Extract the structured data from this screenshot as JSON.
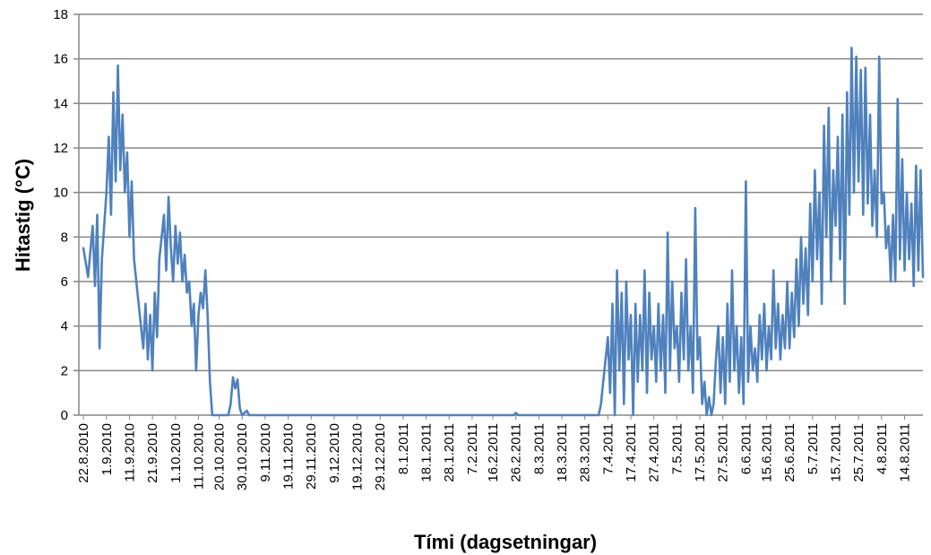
{
  "chart_data": {
    "type": "line",
    "title": "",
    "xlabel": "Tími (dagsetningar)",
    "ylabel": "Hitastig (°C)",
    "ylim": [
      0,
      18
    ],
    "yticks": [
      "0",
      "2",
      "4",
      "6",
      "8",
      "10",
      "12",
      "14",
      "16",
      "18"
    ],
    "grid": true,
    "legend": "none",
    "x_tick_labels": [
      "22.8.2010",
      "1.9.2010",
      "11.9.2010",
      "21.9.2010",
      "1.10.2010",
      "11.10.2010",
      "20.10.2010",
      "30.10.2010",
      "9.11.2010",
      "19.11.2010",
      "29.11.2010",
      "9.12.2010",
      "19.12.2010",
      "29.12.2010",
      "8.1.2011",
      "18.1.2011",
      "28.1.2011",
      "7.2.2011",
      "16.2.2011",
      "26.2.2011",
      "8.3.2011",
      "18.3.2011",
      "28.3.2011",
      "7.4.2011",
      "17.4.2011",
      "27.4.2011",
      "7.5.2011",
      "17.5.2011",
      "27.5.2011",
      "6.6.2011",
      "15.6.2011",
      "25.6.2011",
      "5.7.2011",
      "15.7.2011",
      "25.7.2011",
      "4.8.2011",
      "14.8.2011"
    ],
    "series": [
      {
        "color": "#4f81bd",
        "points": [
          [
            "22.8.2010",
            7.5
          ],
          [
            "24.8.2010",
            6.2
          ],
          [
            "26.8.2010",
            8.5
          ],
          [
            "27.8.2010",
            5.8
          ],
          [
            "28.8.2010",
            9.0
          ],
          [
            "29.8.2010",
            3.0
          ],
          [
            "30.8.2010",
            7.0
          ],
          [
            "1.9.2010",
            10.0
          ],
          [
            "2.9.2010",
            12.5
          ],
          [
            "3.9.2010",
            9.0
          ],
          [
            "4.9.2010",
            14.5
          ],
          [
            "5.9.2010",
            10.5
          ],
          [
            "6.9.2010",
            15.7
          ],
          [
            "7.9.2010",
            11.0
          ],
          [
            "8.9.2010",
            13.5
          ],
          [
            "9.9.2010",
            10.0
          ],
          [
            "10.9.2010",
            11.8
          ],
          [
            "11.9.2010",
            8.0
          ],
          [
            "12.9.2010",
            10.5
          ],
          [
            "13.9.2010",
            7.0
          ],
          [
            "15.9.2010",
            5.0
          ],
          [
            "17.9.2010",
            3.0
          ],
          [
            "18.9.2010",
            5.0
          ],
          [
            "19.9.2010",
            2.5
          ],
          [
            "20.9.2010",
            4.5
          ],
          [
            "21.9.2010",
            2.0
          ],
          [
            "22.9.2010",
            5.5
          ],
          [
            "23.9.2010",
            3.5
          ],
          [
            "24.9.2010",
            7.0
          ],
          [
            "26.9.2010",
            9.0
          ],
          [
            "27.9.2010",
            6.5
          ],
          [
            "28.9.2010",
            9.8
          ],
          [
            "29.9.2010",
            7.5
          ],
          [
            "30.9.2010",
            6.0
          ],
          [
            "1.10.2010",
            8.5
          ],
          [
            "2.10.2010",
            6.8
          ],
          [
            "3.10.2010",
            8.2
          ],
          [
            "4.10.2010",
            6.0
          ],
          [
            "5.10.2010",
            7.2
          ],
          [
            "6.10.2010",
            5.5
          ],
          [
            "7.10.2010",
            6.0
          ],
          [
            "8.10.2010",
            4.0
          ],
          [
            "9.10.2010",
            5.0
          ],
          [
            "10.10.2010",
            2.0
          ],
          [
            "11.10.2010",
            4.5
          ],
          [
            "12.10.2010",
            5.5
          ],
          [
            "13.10.2010",
            4.8
          ],
          [
            "14.10.2010",
            6.5
          ],
          [
            "15.10.2010",
            4.5
          ],
          [
            "16.10.2010",
            1.5
          ],
          [
            "17.10.2010",
            0.0
          ],
          [
            "24.10.2010",
            0.0
          ],
          [
            "25.10.2010",
            0.5
          ],
          [
            "26.10.2010",
            1.7
          ],
          [
            "27.10.2010",
            1.2
          ],
          [
            "28.10.2010",
            1.6
          ],
          [
            "29.10.2010",
            0.3
          ],
          [
            "30.10.2010",
            0.0
          ],
          [
            "1.11.2010",
            0.2
          ],
          [
            "2.11.2010",
            0.0
          ],
          [
            "25.2.2011",
            0.0
          ],
          [
            "26.2.2011",
            0.1
          ],
          [
            "27.2.2011",
            0.0
          ],
          [
            "3.4.2011",
            0.0
          ],
          [
            "4.4.2011",
            0.5
          ],
          [
            "5.4.2011",
            1.5
          ],
          [
            "7.4.2011",
            3.5
          ],
          [
            "8.4.2011",
            1.0
          ],
          [
            "9.4.2011",
            5.0
          ],
          [
            "10.4.2011",
            0.0
          ],
          [
            "11.4.2011",
            6.5
          ],
          [
            "12.4.2011",
            2.0
          ],
          [
            "13.4.2011",
            5.5
          ],
          [
            "14.4.2011",
            0.5
          ],
          [
            "15.4.2011",
            6.0
          ],
          [
            "16.4.2011",
            2.5
          ],
          [
            "17.4.2011",
            4.5
          ],
          [
            "18.4.2011",
            0.0
          ],
          [
            "19.4.2011",
            5.0
          ],
          [
            "20.4.2011",
            1.5
          ],
          [
            "21.4.2011",
            4.5
          ],
          [
            "22.4.2011",
            2.0
          ],
          [
            "23.4.2011",
            6.5
          ],
          [
            "24.4.2011",
            1.0
          ],
          [
            "25.4.2011",
            5.5
          ],
          [
            "26.4.2011",
            2.5
          ],
          [
            "27.4.2011",
            4.0
          ],
          [
            "28.4.2011",
            1.5
          ],
          [
            "29.4.2011",
            5.0
          ],
          [
            "30.4.2011",
            2.0
          ],
          [
            "1.5.2011",
            4.5
          ],
          [
            "2.5.2011",
            1.0
          ],
          [
            "3.5.2011",
            8.2
          ],
          [
            "4.5.2011",
            2.0
          ],
          [
            "5.5.2011",
            6.0
          ],
          [
            "6.5.2011",
            3.0
          ],
          [
            "7.5.2011",
            4.0
          ],
          [
            "8.5.2011",
            1.5
          ],
          [
            "9.5.2011",
            5.5
          ],
          [
            "10.5.2011",
            2.5
          ],
          [
            "11.5.2011",
            7.0
          ],
          [
            "12.5.2011",
            2.0
          ],
          [
            "13.5.2011",
            4.0
          ],
          [
            "14.5.2011",
            1.0
          ],
          [
            "15.5.2011",
            9.3
          ],
          [
            "16.5.2011",
            2.5
          ],
          [
            "17.5.2011",
            3.5
          ],
          [
            "18.5.2011",
            0.5
          ],
          [
            "19.5.2011",
            1.5
          ],
          [
            "20.5.2011",
            0.0
          ],
          [
            "21.5.2011",
            0.8
          ],
          [
            "22.5.2011",
            0.0
          ],
          [
            "23.5.2011",
            0.5
          ],
          [
            "24.5.2011",
            2.5
          ],
          [
            "25.5.2011",
            4.0
          ],
          [
            "26.5.2011",
            1.0
          ],
          [
            "27.5.2011",
            3.5
          ],
          [
            "28.5.2011",
            0.5
          ],
          [
            "29.5.2011",
            5.0
          ],
          [
            "30.5.2011",
            1.5
          ],
          [
            "31.5.2011",
            6.5
          ],
          [
            "1.6.2011",
            2.0
          ],
          [
            "2.6.2011",
            4.0
          ],
          [
            "3.6.2011",
            1.0
          ],
          [
            "4.6.2011",
            3.5
          ],
          [
            "5.6.2011",
            0.5
          ],
          [
            "6.6.2011",
            10.5
          ],
          [
            "7.6.2011",
            1.5
          ],
          [
            "8.6.2011",
            4.0
          ],
          [
            "9.6.2011",
            2.0
          ],
          [
            "10.6.2011",
            3.0
          ],
          [
            "11.6.2011",
            1.5
          ],
          [
            "12.6.2011",
            4.5
          ],
          [
            "13.6.2011",
            2.5
          ],
          [
            "14.6.2011",
            5.0
          ],
          [
            "15.6.2011",
            2.0
          ],
          [
            "16.6.2011",
            4.0
          ],
          [
            "17.6.2011",
            2.5
          ],
          [
            "18.6.2011",
            6.5
          ],
          [
            "19.6.2011",
            3.0
          ],
          [
            "20.6.2011",
            5.0
          ],
          [
            "21.6.2011",
            2.5
          ],
          [
            "22.6.2011",
            4.5
          ],
          [
            "23.6.2011",
            3.0
          ],
          [
            "24.6.2011",
            6.0
          ],
          [
            "25.6.2011",
            3.0
          ],
          [
            "26.6.2011",
            5.5
          ],
          [
            "27.6.2011",
            3.5
          ],
          [
            "28.6.2011",
            7.0
          ],
          [
            "29.6.2011",
            4.0
          ],
          [
            "30.6.2011",
            8.0
          ],
          [
            "1.7.2011",
            5.0
          ],
          [
            "2.7.2011",
            7.5
          ],
          [
            "3.7.2011",
            4.5
          ],
          [
            "4.7.2011",
            9.5
          ],
          [
            "5.7.2011",
            6.0
          ],
          [
            "6.7.2011",
            11.0
          ],
          [
            "7.7.2011",
            7.0
          ],
          [
            "8.7.2011",
            10.0
          ],
          [
            "9.7.2011",
            5.0
          ],
          [
            "10.7.2011",
            13.0
          ],
          [
            "11.7.2011",
            8.0
          ],
          [
            "12.7.2011",
            13.8
          ],
          [
            "13.7.2011",
            6.0
          ],
          [
            "14.7.2011",
            11.0
          ],
          [
            "15.7.2011",
            8.5
          ],
          [
            "16.7.2011",
            12.5
          ],
          [
            "17.7.2011",
            7.0
          ],
          [
            "18.7.2011",
            13.5
          ],
          [
            "19.7.2011",
            5.0
          ],
          [
            "20.7.2011",
            14.5
          ],
          [
            "21.7.2011",
            9.0
          ],
          [
            "22.7.2011",
            16.5
          ],
          [
            "23.7.2011",
            10.0
          ],
          [
            "24.7.2011",
            16.1
          ],
          [
            "25.7.2011",
            10.5
          ],
          [
            "26.7.2011",
            15.5
          ],
          [
            "27.7.2011",
            9.0
          ],
          [
            "28.7.2011",
            15.6
          ],
          [
            "29.7.2011",
            9.5
          ],
          [
            "30.7.2011",
            13.5
          ],
          [
            "31.7.2011",
            8.5
          ],
          [
            "1.8.2011",
            11.0
          ],
          [
            "2.8.2011",
            8.0
          ],
          [
            "3.8.2011",
            16.1
          ],
          [
            "4.8.2011",
            9.5
          ],
          [
            "5.8.2011",
            10.0
          ],
          [
            "6.8.2011",
            7.5
          ],
          [
            "7.8.2011",
            8.5
          ],
          [
            "8.8.2011",
            6.0
          ],
          [
            "9.8.2011",
            9.0
          ],
          [
            "10.8.2011",
            6.0
          ],
          [
            "11.8.2011",
            14.2
          ],
          [
            "12.8.2011",
            7.0
          ],
          [
            "13.8.2011",
            11.5
          ],
          [
            "14.8.2011",
            6.5
          ],
          [
            "15.8.2011",
            10.0
          ],
          [
            "16.8.2011",
            7.0
          ],
          [
            "17.8.2011",
            9.5
          ],
          [
            "18.8.2011",
            5.8
          ],
          [
            "19.8.2011",
            11.2
          ],
          [
            "20.8.2011",
            6.5
          ],
          [
            "21.8.2011",
            11.0
          ],
          [
            "22.8.2011",
            6.2
          ]
        ]
      }
    ]
  }
}
